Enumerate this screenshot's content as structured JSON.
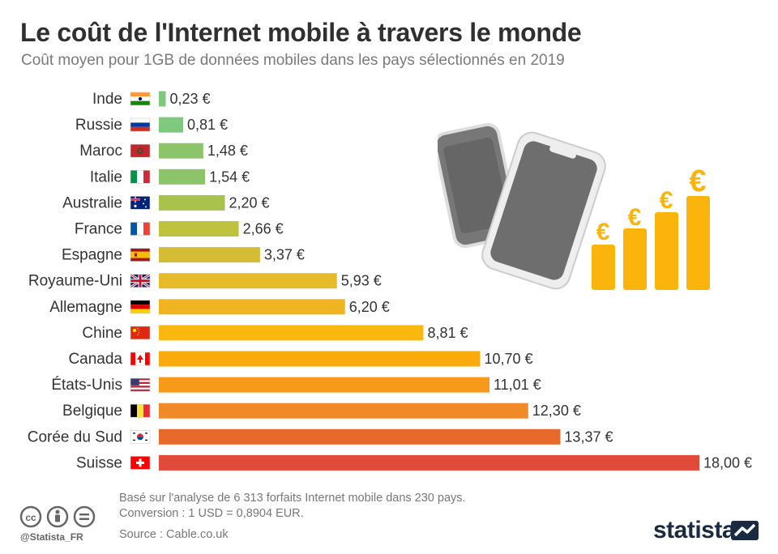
{
  "header": {
    "title": "Le coût de l'Internet mobile à travers le monde",
    "subtitle": "Coût moyen pour 1GB de données mobiles dans les pays sélectionnés en 2019"
  },
  "chart_data": {
    "type": "bar",
    "orientation": "horizontal",
    "title": "Le coût de l'Internet mobile à travers le monde",
    "subtitle": "Coût moyen pour 1GB de données mobiles dans les pays sélectionnés en 2019",
    "xlabel": "",
    "ylabel": "",
    "categories": [
      "Inde",
      "Russie",
      "Maroc",
      "Italie",
      "Australie",
      "France",
      "Espagne",
      "Royaume-Uni",
      "Allemagne",
      "Chine",
      "Canada",
      "États-Unis",
      "Belgique",
      "Corée du Sud",
      "Suisse"
    ],
    "values": [
      0.23,
      0.81,
      1.48,
      1.54,
      2.2,
      2.66,
      3.37,
      5.93,
      6.2,
      8.81,
      10.7,
      11.01,
      12.3,
      13.37,
      18.0
    ],
    "value_labels": [
      "0,23 €",
      "0,81 €",
      "1,48 €",
      "1,54 €",
      "2,20 €",
      "2,66 €",
      "3,37 €",
      "5,93 €",
      "6,20 €",
      "8,81 €",
      "10,70 €",
      "11,01 €",
      "12,30 €",
      "13,37 €",
      "18,00 €"
    ],
    "bar_colors": [
      "#7fc97f",
      "#7fc97f",
      "#8cc46a",
      "#8cc46a",
      "#a8c24e",
      "#bfc23e",
      "#d4bd35",
      "#e5bb2a",
      "#f0b420",
      "#fab70e",
      "#fbaa0c",
      "#f79a1a",
      "#f08928",
      "#e76a2c",
      "#e04a3a"
    ],
    "flags": [
      "india",
      "russia",
      "morocco",
      "italy",
      "australia",
      "france",
      "spain",
      "uk",
      "germany",
      "china",
      "canada",
      "usa",
      "belgium",
      "south-korea",
      "switzerland"
    ],
    "xlim": [
      0,
      18
    ],
    "grid": false,
    "legend": "none"
  },
  "illustration": {
    "coin_symbol": "€",
    "accent_color": "#fbb40c",
    "phone_color": "#6e6e6e"
  },
  "footer": {
    "note1": "Basé sur l'analyse de 6 313 forfaits Internet mobile dans 230 pays.",
    "note2": "Conversion : 1 USD = 0,8904 EUR.",
    "source": "Source : Cable.co.uk",
    "handle": "@Statista_FR",
    "brand": "statista",
    "license_icons": [
      "cc-icon",
      "by-icon",
      "nd-icon"
    ]
  }
}
